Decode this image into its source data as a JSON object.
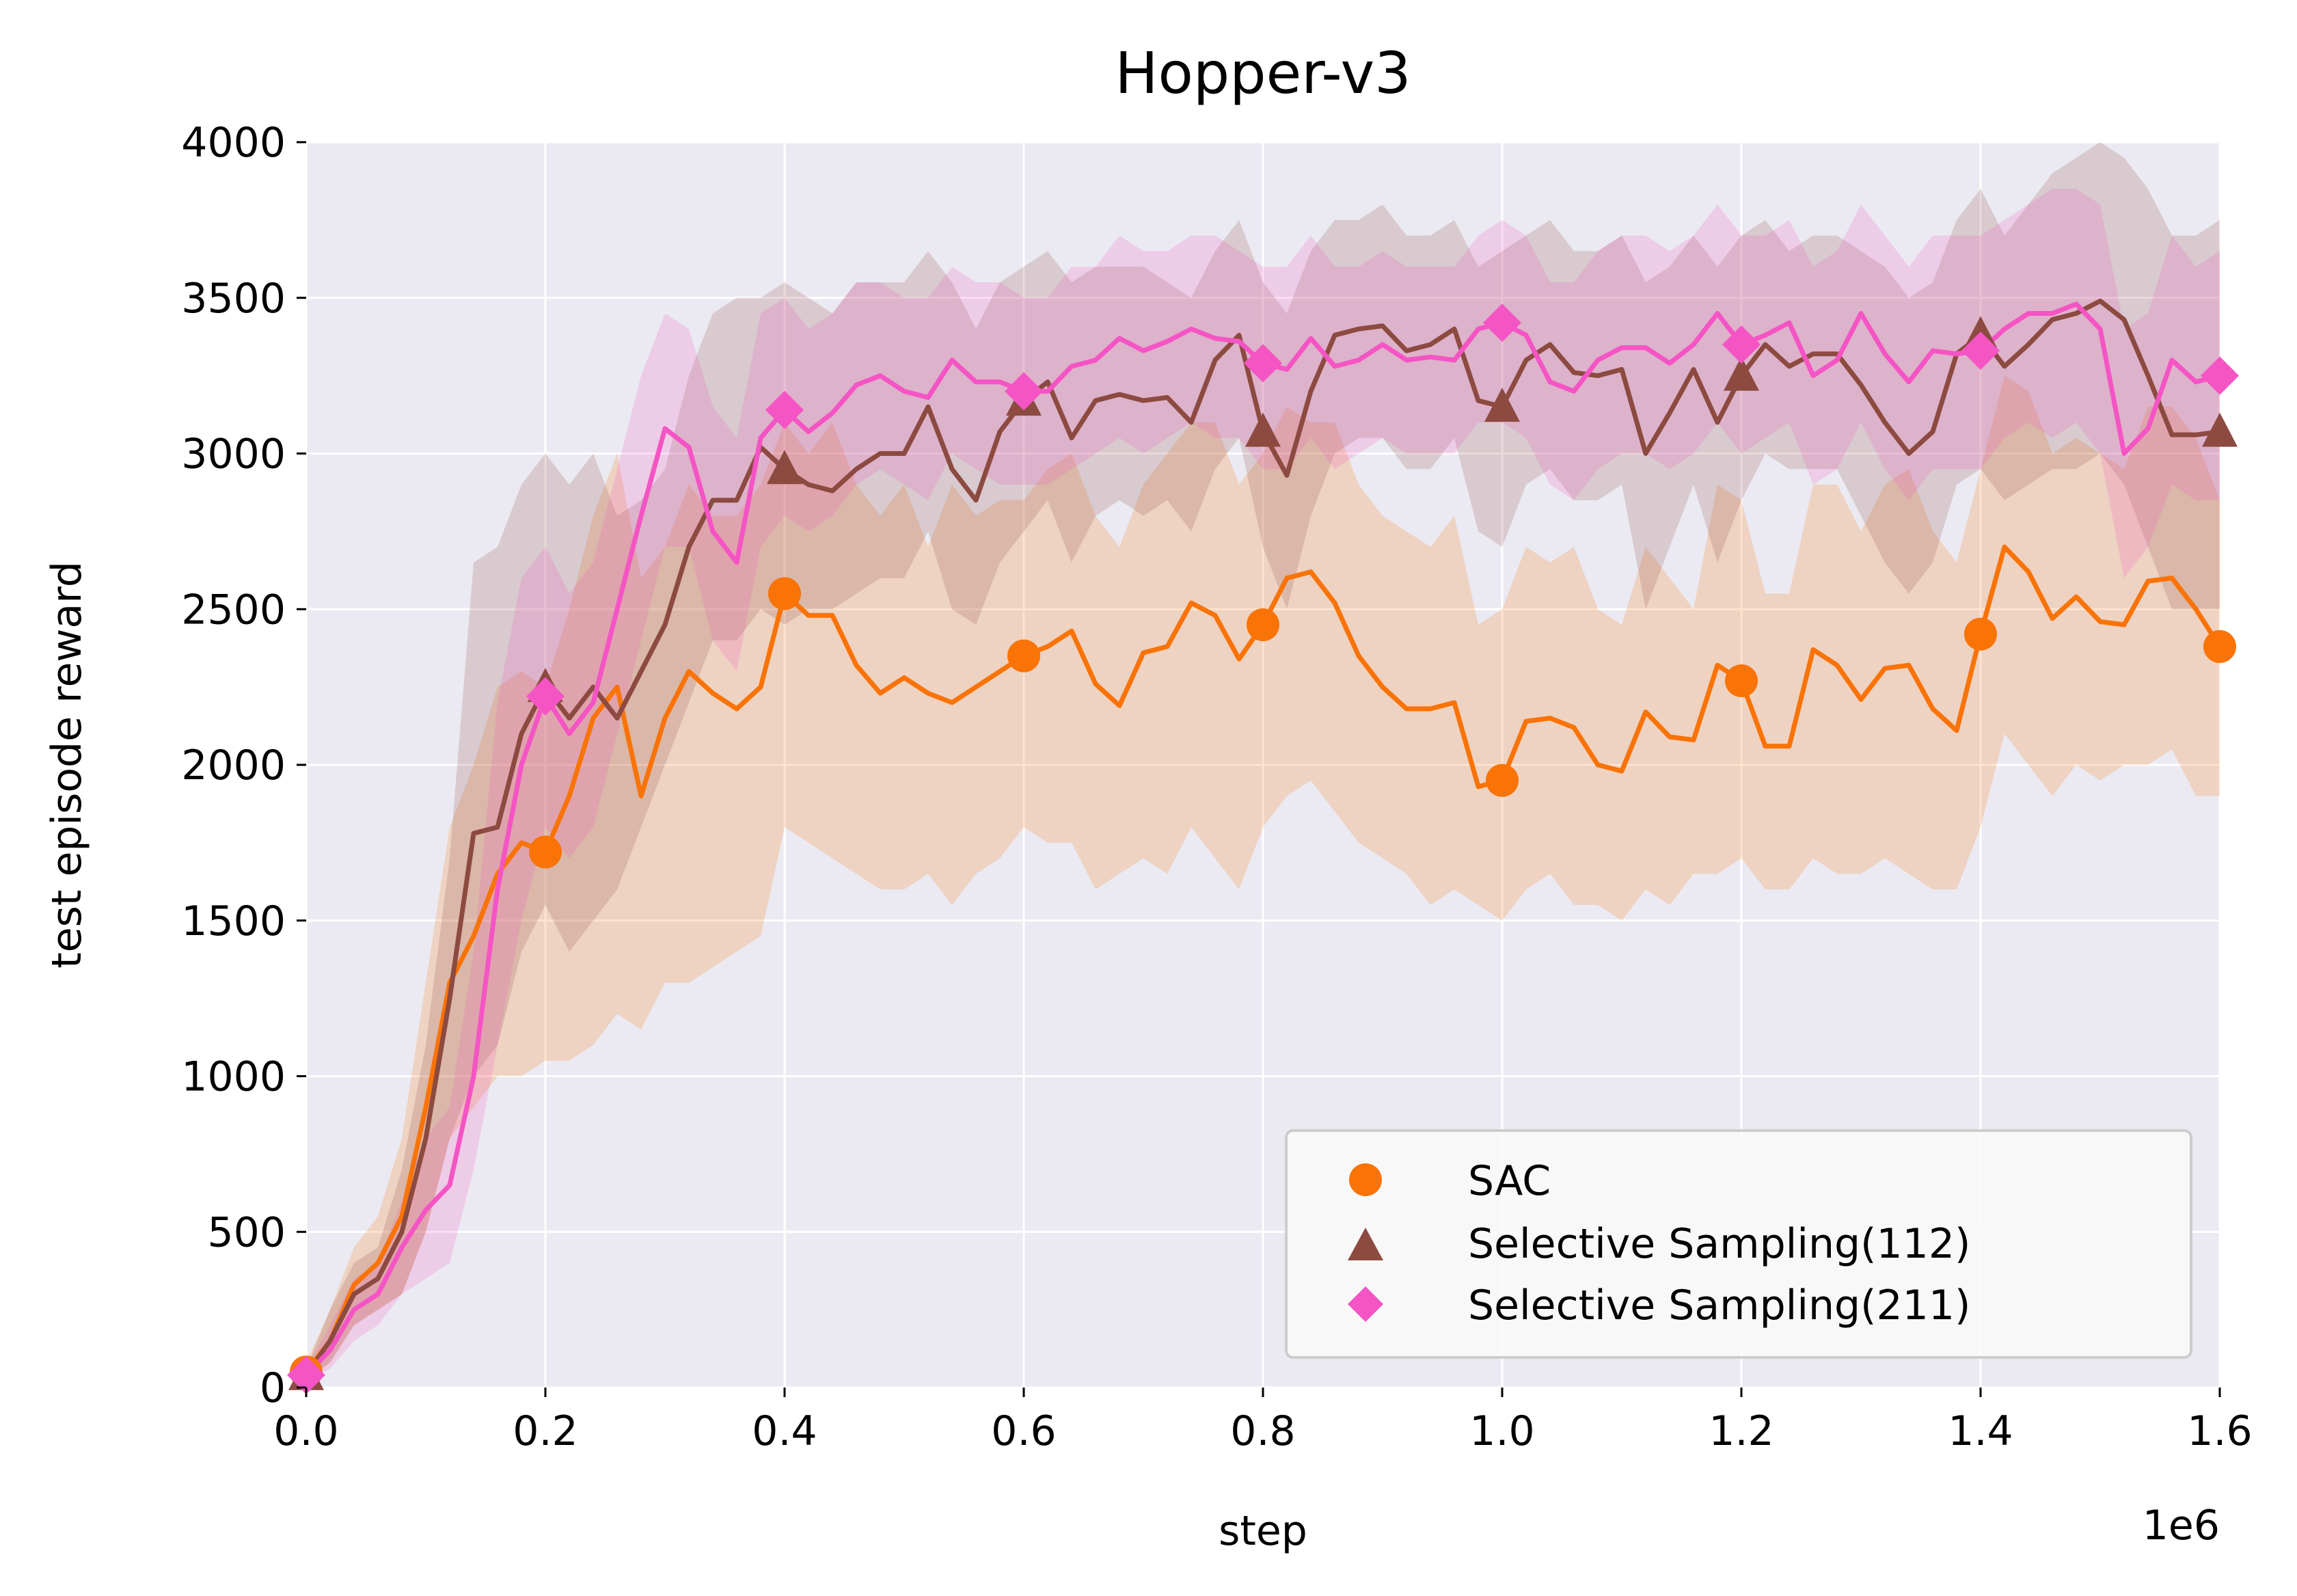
{
  "chart_data": {
    "type": "line",
    "title": "Hopper-v3",
    "xlabel": "step",
    "ylabel": "test episode reward",
    "x_offset_label": "1e6",
    "xlim": [
      0,
      1.6
    ],
    "ylim": [
      0,
      4000
    ],
    "x_ticks": [
      0.0,
      0.2,
      0.4,
      0.6,
      0.8,
      1.0,
      1.2,
      1.4,
      1.6
    ],
    "x_tick_labels": [
      "0.0",
      "0.2",
      "0.4",
      "0.6",
      "0.8",
      "1.0",
      "1.2",
      "1.4",
      "1.6"
    ],
    "y_ticks": [
      0,
      500,
      1000,
      1500,
      2000,
      2500,
      3000,
      3500,
      4000
    ],
    "y_tick_labels": [
      "0",
      "500",
      "1000",
      "1500",
      "2000",
      "2500",
      "3000",
      "3500",
      "4000"
    ],
    "grid": true,
    "legend_position": "bottom-right",
    "colors": {
      "background": "#ebeaf2",
      "grid": "#ffffff"
    },
    "x": [
      0.0,
      0.02,
      0.04,
      0.06,
      0.08,
      0.1,
      0.12,
      0.14,
      0.16,
      0.18,
      0.2,
      0.22,
      0.24,
      0.26,
      0.28,
      0.3,
      0.32,
      0.34,
      0.36,
      0.38,
      0.4,
      0.42,
      0.44,
      0.46,
      0.48,
      0.5,
      0.52,
      0.54,
      0.56,
      0.58,
      0.6,
      0.62,
      0.64,
      0.66,
      0.68,
      0.7,
      0.72,
      0.74,
      0.76,
      0.78,
      0.8,
      0.82,
      0.84,
      0.86,
      0.88,
      0.9,
      0.92,
      0.94,
      0.96,
      0.98,
      1.0,
      1.02,
      1.04,
      1.06,
      1.08,
      1.1,
      1.12,
      1.14,
      1.16,
      1.18,
      1.2,
      1.22,
      1.24,
      1.26,
      1.28,
      1.3,
      1.32,
      1.34,
      1.36,
      1.38,
      1.4,
      1.42,
      1.44,
      1.46,
      1.48,
      1.5,
      1.52,
      1.54,
      1.56,
      1.58,
      1.6
    ],
    "series": [
      {
        "name": "SAC",
        "color": "#f97306",
        "marker": "circle",
        "marker_x": [
          0.0,
          0.2,
          0.4,
          0.6,
          0.8,
          1.0,
          1.2,
          1.4,
          1.6
        ],
        "values": [
          50,
          150,
          330,
          400,
          550,
          900,
          1300,
          1450,
          1650,
          1750,
          1720,
          1900,
          2150,
          2250,
          1900,
          2150,
          2300,
          2230,
          2180,
          2250,
          2550,
          2480,
          2480,
          2320,
          2230,
          2280,
          2230,
          2200,
          2250,
          2300,
          2350,
          2380,
          2430,
          2260,
          2190,
          2360,
          2380,
          2520,
          2480,
          2340,
          2450,
          2600,
          2620,
          2520,
          2350,
          2250,
          2180,
          2180,
          2200,
          1930,
          1950,
          2140,
          2150,
          2120,
          2000,
          1980,
          2170,
          2090,
          2080,
          2320,
          2270,
          2060,
          2060,
          2370,
          2320,
          2210,
          2310,
          2320,
          2180,
          2110,
          2420,
          2700,
          2620,
          2470,
          2540,
          2460,
          2450,
          2590,
          2600,
          2500,
          2380
        ],
        "lower": [
          30,
          80,
          200,
          250,
          300,
          500,
          800,
          900,
          1000,
          1000,
          1050,
          1050,
          1100,
          1200,
          1150,
          1300,
          1300,
          1350,
          1400,
          1450,
          1800,
          1750,
          1700,
          1650,
          1600,
          1600,
          1650,
          1550,
          1650,
          1700,
          1800,
          1750,
          1750,
          1600,
          1650,
          1700,
          1650,
          1800,
          1700,
          1600,
          1800,
          1900,
          1950,
          1850,
          1750,
          1700,
          1650,
          1550,
          1600,
          1550,
          1500,
          1600,
          1650,
          1550,
          1550,
          1500,
          1600,
          1550,
          1650,
          1650,
          1700,
          1600,
          1600,
          1700,
          1650,
          1650,
          1700,
          1650,
          1600,
          1600,
          1800,
          2100,
          2000,
          1900,
          2000,
          1950,
          2000,
          2000,
          2050,
          1900,
          1900
        ],
        "upper": [
          80,
          250,
          450,
          550,
          800,
          1300,
          1800,
          2000,
          2250,
          2300,
          2250,
          2500,
          2800,
          3000,
          2600,
          2700,
          2900,
          2800,
          2800,
          2900,
          3100,
          3000,
          3100,
          2900,
          2800,
          2900,
          2700,
          2900,
          2800,
          2850,
          2850,
          2950,
          3000,
          2800,
          2700,
          2900,
          3000,
          3100,
          3100,
          2900,
          3000,
          3150,
          3100,
          3100,
          2900,
          2800,
          2750,
          2700,
          2800,
          2450,
          2500,
          2700,
          2650,
          2700,
          2500,
          2450,
          2700,
          2600,
          2500,
          2900,
          2850,
          2550,
          2550,
          2900,
          2900,
          2750,
          2900,
          2950,
          2750,
          2650,
          2950,
          3250,
          3200,
          3000,
          3050,
          3000,
          2950,
          3150,
          3150,
          3050,
          2850
        ]
      },
      {
        "name": "Selective Sampling(112)",
        "color": "#8c4a40",
        "marker": "triangle",
        "marker_x": [
          0.0,
          0.2,
          0.4,
          0.6,
          0.8,
          1.0,
          1.2,
          1.4,
          1.6
        ],
        "values": [
          40,
          150,
          300,
          350,
          500,
          800,
          1250,
          1780,
          1800,
          2100,
          2250,
          2150,
          2250,
          2150,
          2300,
          2450,
          2700,
          2850,
          2850,
          3020,
          2950,
          2900,
          2880,
          2950,
          3000,
          3000,
          3150,
          2950,
          2850,
          3070,
          3170,
          3230,
          3050,
          3170,
          3190,
          3170,
          3180,
          3100,
          3300,
          3380,
          3070,
          2930,
          3200,
          3380,
          3400,
          3410,
          3330,
          3350,
          3400,
          3170,
          3150,
          3300,
          3350,
          3260,
          3250,
          3270,
          3000,
          3130,
          3270,
          3100,
          3250,
          3350,
          3280,
          3320,
          3320,
          3220,
          3100,
          3000,
          3070,
          3320,
          3380,
          3280,
          3350,
          3430,
          3450,
          3490,
          3430,
          3250,
          3060,
          3060,
          3070
        ],
        "lower": [
          20,
          80,
          200,
          250,
          300,
          500,
          800,
          1000,
          1100,
          1400,
          1550,
          1400,
          1500,
          1600,
          1800,
          2000,
          2200,
          2400,
          2400,
          2500,
          2450,
          2500,
          2500,
          2550,
          2600,
          2600,
          2750,
          2500,
          2450,
          2650,
          2750,
          2850,
          2650,
          2800,
          2850,
          2800,
          2850,
          2750,
          2950,
          3050,
          2700,
          2500,
          2800,
          3000,
          3050,
          3050,
          2950,
          2950,
          3050,
          2750,
          2700,
          2900,
          2950,
          2850,
          2850,
          2900,
          2500,
          2700,
          2900,
          2650,
          2850,
          3000,
          2950,
          2950,
          2950,
          2800,
          2650,
          2550,
          2650,
          2900,
          2950,
          2850,
          2900,
          2950,
          2950,
          3000,
          2900,
          2700,
          2500,
          2500,
          2500
        ],
        "upper": [
          60,
          250,
          400,
          450,
          700,
          1100,
          1700,
          2650,
          2700,
          2900,
          3000,
          2900,
          3000,
          2800,
          2850,
          2950,
          3250,
          3450,
          3500,
          3500,
          3550,
          3500,
          3450,
          3550,
          3550,
          3550,
          3650,
          3550,
          3400,
          3550,
          3600,
          3650,
          3550,
          3600,
          3600,
          3600,
          3550,
          3500,
          3650,
          3750,
          3550,
          3450,
          3650,
          3750,
          3750,
          3800,
          3700,
          3700,
          3750,
          3600,
          3650,
          3700,
          3750,
          3650,
          3650,
          3700,
          3550,
          3600,
          3700,
          3600,
          3700,
          3750,
          3650,
          3700,
          3700,
          3650,
          3600,
          3500,
          3550,
          3750,
          3850,
          3700,
          3800,
          3900,
          3950,
          4000,
          3950,
          3850,
          3700,
          3700,
          3750
        ]
      },
      {
        "name": "Selective Sampling(211)",
        "color": "#f554c4",
        "marker": "diamond",
        "marker_x": [
          0.0,
          0.2,
          0.4,
          0.6,
          0.8,
          1.0,
          1.2,
          1.4,
          1.6
        ],
        "values": [
          40,
          120,
          250,
          300,
          450,
          570,
          650,
          1000,
          1600,
          2000,
          2220,
          2100,
          2200,
          2500,
          2800,
          3080,
          3020,
          2750,
          2650,
          3050,
          3140,
          3070,
          3130,
          3220,
          3250,
          3200,
          3180,
          3300,
          3230,
          3230,
          3200,
          3200,
          3280,
          3300,
          3370,
          3330,
          3360,
          3400,
          3370,
          3360,
          3290,
          3270,
          3370,
          3280,
          3300,
          3350,
          3300,
          3310,
          3300,
          3400,
          3420,
          3380,
          3230,
          3200,
          3300,
          3340,
          3340,
          3290,
          3350,
          3450,
          3350,
          3380,
          3420,
          3250,
          3300,
          3450,
          3320,
          3230,
          3330,
          3320,
          3330,
          3400,
          3450,
          3450,
          3480,
          3400,
          3000,
          3080,
          3300,
          3230,
          3250
        ],
        "lower": [
          20,
          60,
          150,
          200,
          300,
          350,
          400,
          700,
          1100,
          1500,
          1800,
          1700,
          1800,
          2100,
          2400,
          2700,
          2700,
          2400,
          2300,
          2700,
          2800,
          2750,
          2800,
          2900,
          2950,
          2900,
          2850,
          3000,
          2950,
          2900,
          2900,
          2900,
          2950,
          3000,
          3050,
          3000,
          3050,
          3100,
          3050,
          3050,
          2950,
          2950,
          3050,
          2950,
          3000,
          3050,
          3000,
          3000,
          3000,
          3100,
          3100,
          3050,
          2900,
          2850,
          2950,
          3000,
          3000,
          2950,
          3000,
          3100,
          3000,
          3050,
          3100,
          2900,
          2950,
          3100,
          2950,
          2850,
          2950,
          2950,
          2950,
          3050,
          3100,
          3050,
          3100,
          3000,
          2600,
          2700,
          2900,
          2850,
          2850
        ],
        "upper": [
          60,
          200,
          350,
          400,
          600,
          800,
          900,
          1400,
          2200,
          2600,
          2700,
          2550,
          2650,
          2950,
          3250,
          3450,
          3400,
          3150,
          3050,
          3450,
          3500,
          3400,
          3450,
          3550,
          3550,
          3500,
          3500,
          3600,
          3550,
          3550,
          3500,
          3500,
          3600,
          3600,
          3700,
          3650,
          3650,
          3700,
          3700,
          3650,
          3600,
          3600,
          3700,
          3600,
          3600,
          3650,
          3600,
          3600,
          3600,
          3700,
          3750,
          3700,
          3550,
          3550,
          3650,
          3700,
          3700,
          3650,
          3700,
          3800,
          3700,
          3700,
          3750,
          3600,
          3650,
          3800,
          3700,
          3600,
          3700,
          3700,
          3700,
          3750,
          3800,
          3850,
          3850,
          3800,
          3400,
          3450,
          3700,
          3600,
          3650
        ]
      }
    ]
  }
}
